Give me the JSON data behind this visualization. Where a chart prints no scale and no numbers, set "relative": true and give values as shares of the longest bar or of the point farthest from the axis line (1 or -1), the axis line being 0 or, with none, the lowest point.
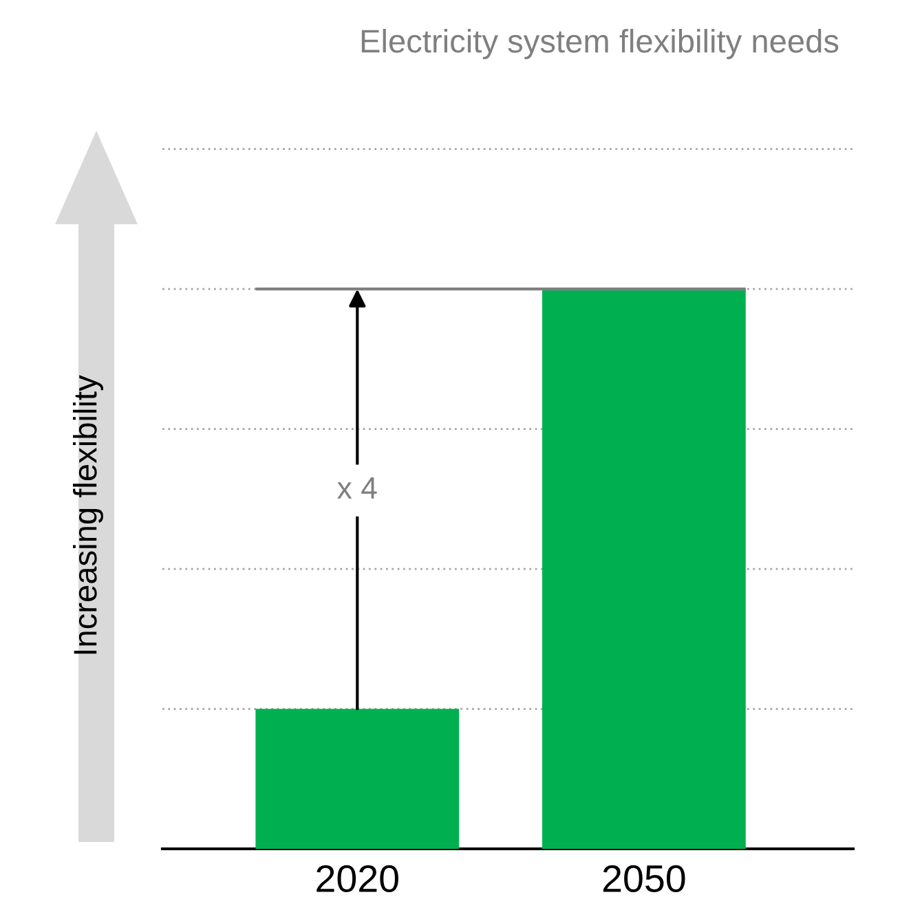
{
  "chart_data": {
    "type": "bar",
    "title": "Electricity system flexibility needs",
    "ylabel": "Increasing flexibility",
    "categories": [
      "2020",
      "2050"
    ],
    "values": [
      0.25,
      1
    ],
    "color": "#00b050",
    "relative": true,
    "grid": "y",
    "ref_lines": [
      {
        "axis": "y",
        "value": 1,
        "color": "#808080"
      }
    ],
    "annotations": [
      "x 4"
    ]
  }
}
